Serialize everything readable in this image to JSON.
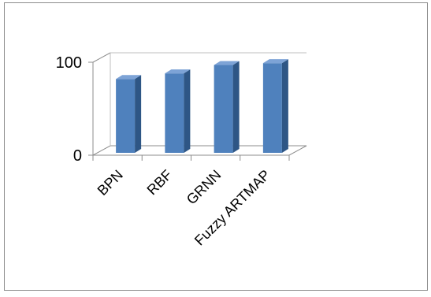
{
  "chart_data": {
    "type": "bar",
    "categories": [
      "BPN",
      "RBF",
      "GRNN",
      "Fuzzy ARTMAP"
    ],
    "values": [
      82,
      88,
      97,
      99
    ],
    "title": "",
    "xlabel": "",
    "ylabel": "",
    "ylim": [
      0,
      100
    ],
    "yticks": [
      0,
      100
    ],
    "style": "3d-column",
    "grid": false,
    "legend": "none",
    "colors": {
      "bar_front": "#4f81bd",
      "bar_side": "#2e5685",
      "bar_top": "#7da3d6",
      "axis": "#8c8c8c",
      "wall_line": "#bfbfbf"
    }
  }
}
